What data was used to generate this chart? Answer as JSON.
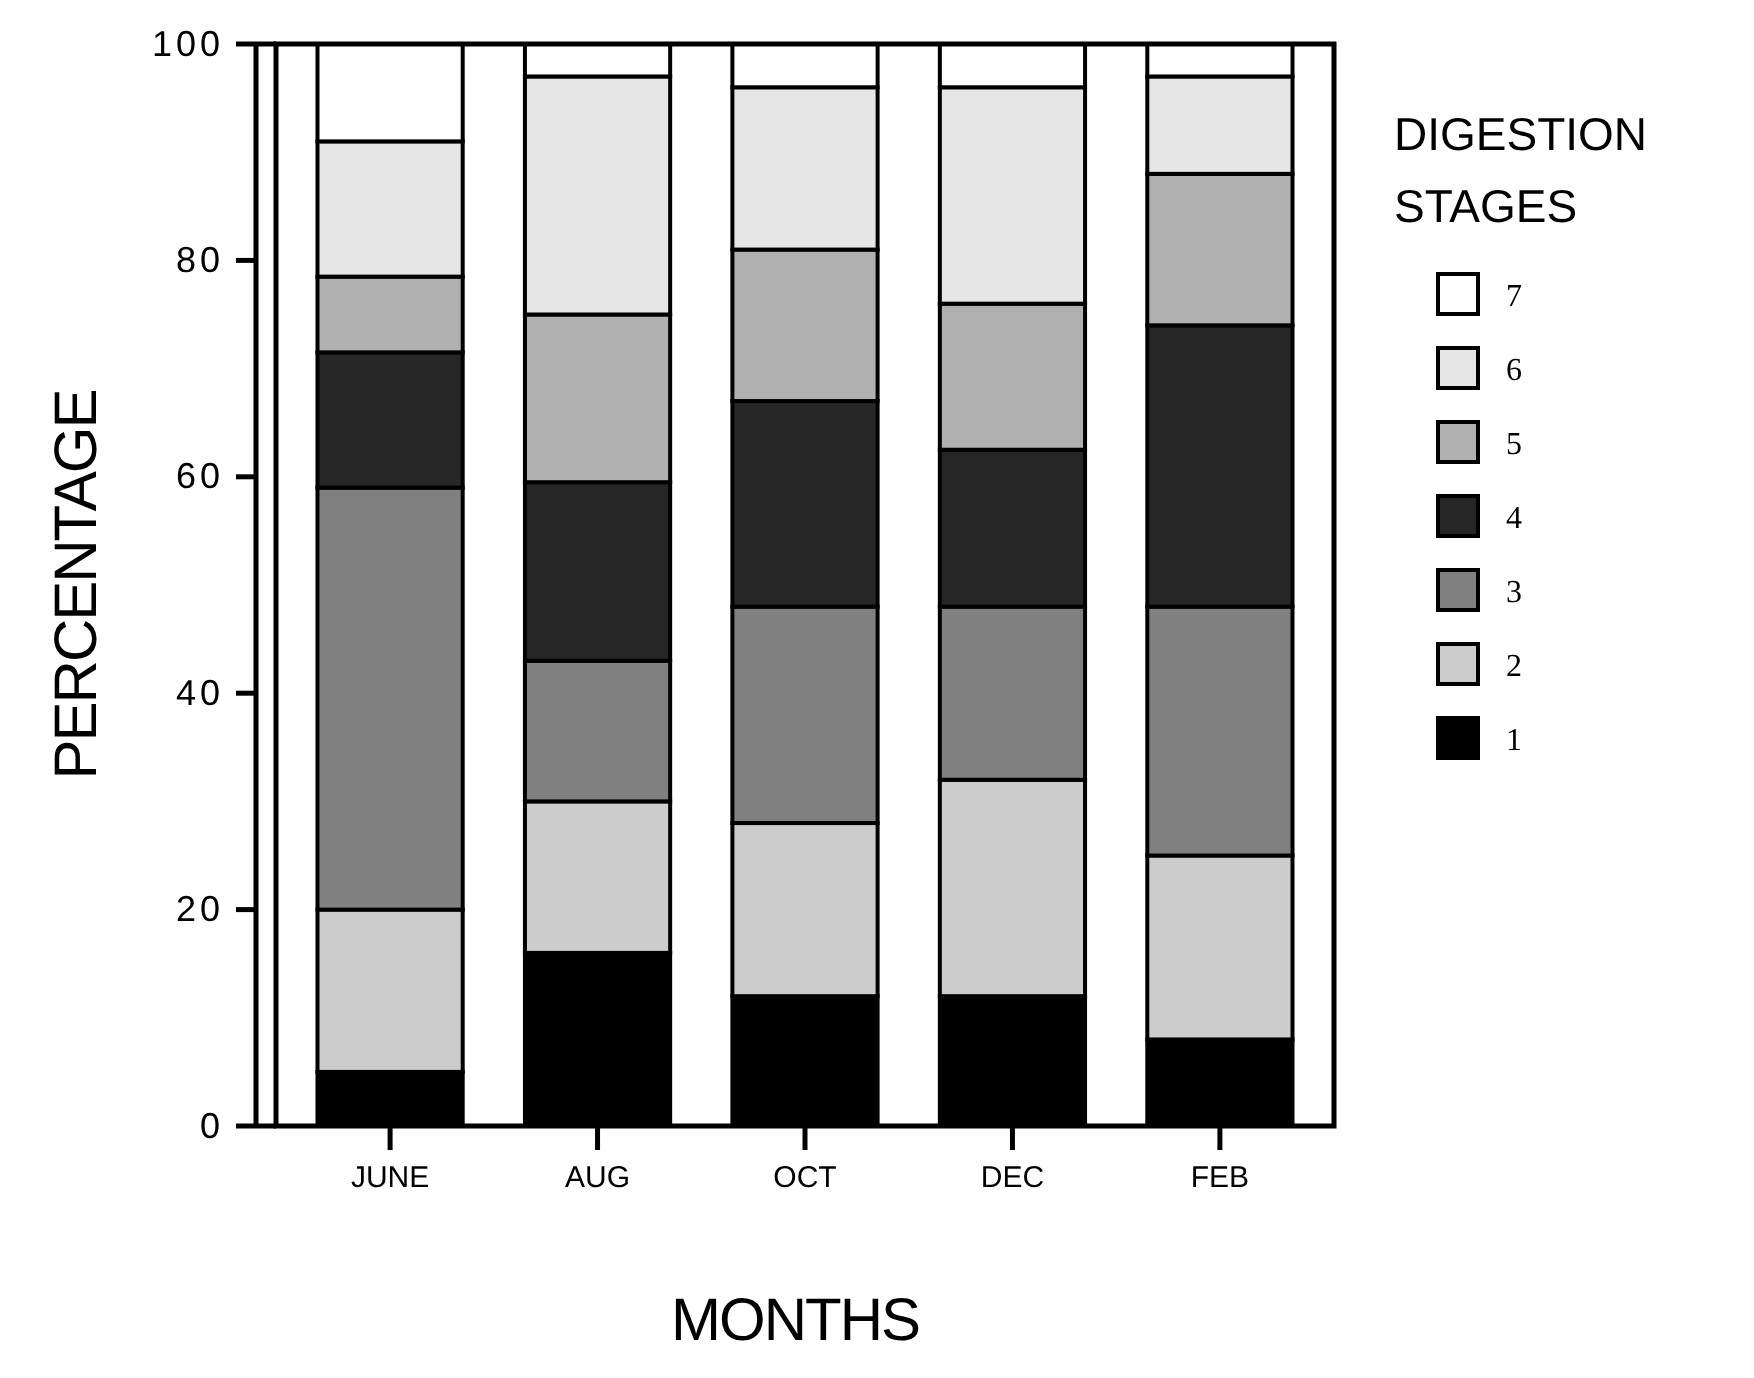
{
  "chart_data": {
    "type": "bar",
    "stacked": true,
    "xlabel": "MONTHS",
    "ylabel": "PERCENTAGE",
    "legend_title": "DIGESTION STAGES",
    "legend": "right",
    "grid": false,
    "categories": [
      "JUNE",
      "AUG",
      "OCT",
      "DEC",
      "FEB"
    ],
    "ylim": [
      0,
      100
    ],
    "yticks": [
      0,
      20,
      40,
      60,
      80,
      100
    ],
    "series": [
      {
        "name": "1",
        "color": "#000000",
        "values": [
          5,
          16,
          12,
          12,
          8
        ]
      },
      {
        "name": "2",
        "color": "#cccccc",
        "values": [
          15,
          14,
          16,
          20,
          17
        ]
      },
      {
        "name": "3",
        "color": "#808080",
        "values": [
          39,
          13,
          20,
          16,
          23
        ]
      },
      {
        "name": "4",
        "color": "#262626",
        "values": [
          12.5,
          16.5,
          19,
          14.5,
          26
        ]
      },
      {
        "name": "5",
        "color": "#b0b0b0",
        "values": [
          7,
          15.5,
          14,
          13.5,
          14
        ]
      },
      {
        "name": "6",
        "color": "#e6e6e6",
        "values": [
          12.5,
          22,
          15,
          20,
          9
        ]
      },
      {
        "name": "7",
        "color": "#ffffff",
        "values": [
          9,
          3,
          4,
          4,
          3
        ]
      }
    ]
  }
}
